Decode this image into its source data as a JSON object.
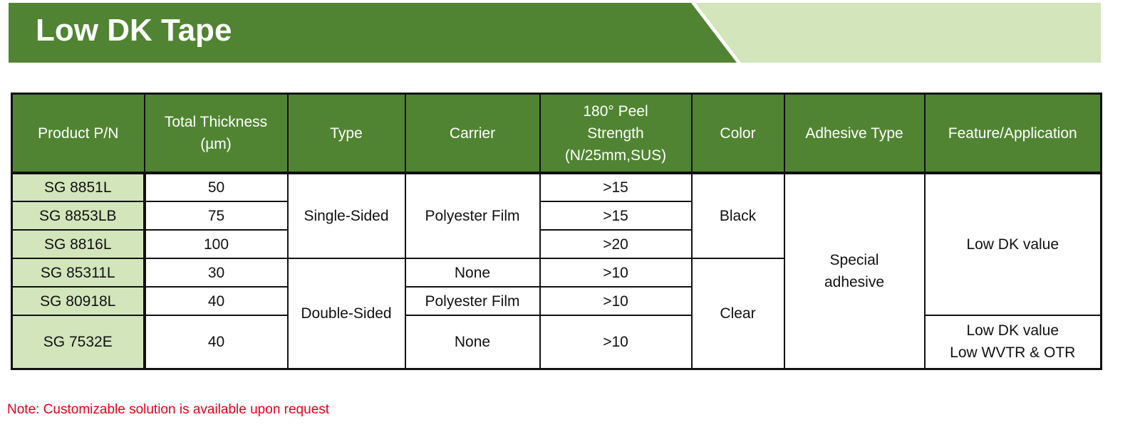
{
  "title": "Low DK Tape",
  "table": {
    "headers": [
      "Product P/N",
      "Total Thickness (µm)",
      "Type",
      "Carrier",
      "180° Peel Strength (N/25mm,SUS)",
      "Color",
      "Adhesive Type",
      "Feature/Application"
    ],
    "header_lines": {
      "thickness": [
        "Total Thickness",
        "(µm)"
      ],
      "peel": [
        "180° Peel",
        "Strength",
        "(N/25mm,SUS)"
      ]
    },
    "rows": [
      {
        "pn": "SG 8851L",
        "thickness": "50",
        "peel": ">15"
      },
      {
        "pn": "SG 8853LB",
        "thickness": "75",
        "peel": ">15"
      },
      {
        "pn": "SG 8816L",
        "thickness": "100",
        "peel": ">20"
      },
      {
        "pn": "SG 85311L",
        "thickness": "30",
        "peel": ">10"
      },
      {
        "pn": "SG 80918L",
        "thickness": "40",
        "peel": ">10"
      },
      {
        "pn": "SG 7532E",
        "thickness": "40",
        "peel": ">10"
      }
    ],
    "type": [
      "Single-Sided",
      "Double-Sided"
    ],
    "carrier": [
      "Polyester Film",
      "None",
      "Polyester Film",
      "None"
    ],
    "color": [
      "Black",
      "Clear"
    ],
    "adhesive": [
      "Special",
      "adhesive"
    ],
    "feature": [
      "Low DK value",
      "Low DK value",
      "Low WVTR & OTR"
    ]
  },
  "note": "Note: Customizable solution is available upon request",
  "colors": {
    "header_green": "#508432",
    "light_green": "#d2e5bb",
    "note_red": "#e2001a"
  }
}
